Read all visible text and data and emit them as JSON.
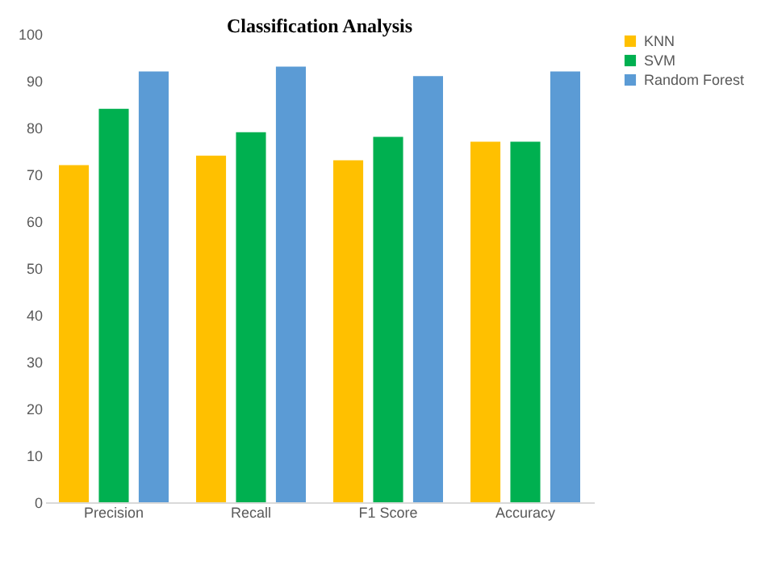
{
  "chart_data": {
    "type": "bar",
    "title": "Classification Analysis",
    "categories": [
      "Precision",
      "Recall",
      "F1 Score",
      "Accuracy"
    ],
    "series": [
      {
        "name": "KNN",
        "color": "#ffc000",
        "values": [
          72,
          74,
          73,
          77
        ]
      },
      {
        "name": "SVM",
        "color": "#00b050",
        "values": [
          84,
          79,
          78,
          77
        ]
      },
      {
        "name": "Random Forest",
        "color": "#5b9bd5",
        "values": [
          92,
          93,
          91,
          92
        ]
      }
    ],
    "ylim": [
      0,
      100
    ],
    "yticks": [
      0,
      10,
      20,
      30,
      40,
      50,
      60,
      70,
      80,
      90,
      100
    ],
    "grid": false,
    "legend": "right"
  }
}
